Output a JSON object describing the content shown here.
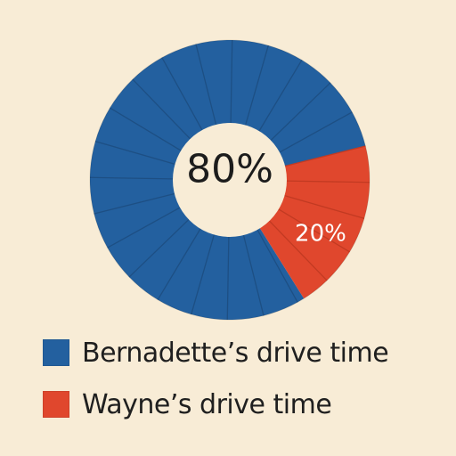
{
  "chart_data": {
    "type": "pie",
    "series": [
      {
        "name": "Bernadette’s drive time",
        "value": 80,
        "label": "80%",
        "color": "#23609f"
      },
      {
        "name": "Wayne’s drive time",
        "value": 20,
        "label": "20%",
        "color": "#e0472d"
      }
    ],
    "center_label": "80%",
    "legend_position": "bottom-left"
  },
  "legend": {
    "items": [
      {
        "label": "Bernadette’s drive time",
        "color": "#23609f"
      },
      {
        "label": "Wayne’s drive time",
        "color": "#e0472d"
      }
    ]
  },
  "colors": {
    "background": "#f8ecd6",
    "segment_line": "#1d4f84",
    "hole": "#f8ecd6"
  }
}
